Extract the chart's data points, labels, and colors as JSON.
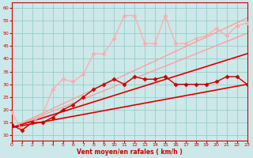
{
  "xlabel": "Vent moyen/en rafales ( km/h )",
  "background_color": "#cce8e8",
  "grid_color": "#99cccc",
  "xlim": [
    0,
    23
  ],
  "ylim": [
    8,
    62
  ],
  "yticks": [
    10,
    15,
    20,
    25,
    30,
    35,
    40,
    45,
    50,
    55,
    60
  ],
  "xticks": [
    0,
    1,
    2,
    3,
    4,
    5,
    6,
    7,
    8,
    9,
    10,
    11,
    12,
    13,
    14,
    15,
    16,
    17,
    18,
    19,
    20,
    21,
    22,
    23
  ],
  "series": [
    {
      "x": [
        0,
        23
      ],
      "y": [
        13,
        30
      ],
      "color": "#dd0000",
      "lw": 1.2,
      "marker": null,
      "alpha": 1.0,
      "zorder": 3
    },
    {
      "x": [
        0,
        23
      ],
      "y": [
        13,
        42
      ],
      "color": "#dd0000",
      "lw": 1.2,
      "marker": null,
      "alpha": 1.0,
      "zorder": 3
    },
    {
      "x": [
        0,
        23
      ],
      "y": [
        13,
        50
      ],
      "color": "#ff9999",
      "lw": 1.0,
      "marker": null,
      "alpha": 0.9,
      "zorder": 2
    },
    {
      "x": [
        0,
        23
      ],
      "y": [
        13,
        56
      ],
      "color": "#ff9999",
      "lw": 1.0,
      "marker": null,
      "alpha": 0.9,
      "zorder": 2
    },
    {
      "x": [
        0,
        1,
        2,
        3,
        4,
        5,
        6,
        7,
        8,
        9,
        10,
        11,
        12,
        13,
        14,
        15,
        16,
        17,
        18,
        19,
        20,
        21,
        22,
        23
      ],
      "y": [
        14,
        12,
        15,
        15,
        17,
        20,
        22,
        25,
        28,
        30,
        32,
        30,
        33,
        32,
        32,
        33,
        30,
        30,
        30,
        30,
        31,
        33,
        33,
        30
      ],
      "color": "#cc0000",
      "lw": 1.0,
      "marker": "D",
      "marker_size": 2.5,
      "alpha": 1.0,
      "zorder": 4
    },
    {
      "x": [
        0,
        1,
        2,
        3,
        4,
        5,
        6,
        7,
        8,
        9,
        10,
        11,
        12,
        13,
        14,
        15,
        16,
        17,
        18,
        19,
        20,
        21,
        22,
        23
      ],
      "y": [
        19,
        12,
        15,
        18,
        28,
        32,
        31,
        34,
        42,
        42,
        48,
        57,
        57,
        46,
        46,
        57,
        46,
        46,
        48,
        49,
        52,
        49,
        53,
        54
      ],
      "color": "#ffaaaa",
      "lw": 1.0,
      "marker": "D",
      "marker_size": 2.5,
      "alpha": 0.9,
      "zorder": 3
    }
  ]
}
